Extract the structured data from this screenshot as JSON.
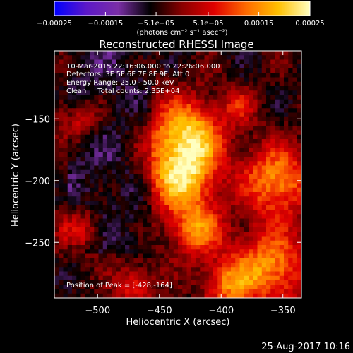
{
  "chart_data": {
    "type": "heatmap",
    "title": "Reconstructed RHESSI Image",
    "xlabel": "Heliocentric X (arcsec)",
    "ylabel": "Heliocentric Y (arcsec)",
    "xlim": [
      -535,
      -335
    ],
    "ylim": [
      -295,
      -95
    ],
    "x_ticks": [
      -500,
      -450,
      -400,
      -350
    ],
    "x_tick_labels": [
      "−500",
      "−450",
      "−400",
      "−350"
    ],
    "y_ticks": [
      -150,
      -200,
      -250
    ],
    "y_tick_labels": [
      "−150",
      "−200",
      "−250"
    ],
    "colorbar": {
      "range": [
        -0.00025,
        0.00025
      ],
      "ticks": [
        -0.00025,
        -0.00015,
        -5.1e-05,
        5.1e-05,
        0.00015,
        0.00025
      ],
      "tick_labels": [
        "−0.00025",
        "−0.00015",
        "−5.1e−05",
        "5.1e−05",
        "0.00015",
        "0.00025"
      ],
      "unit_label": "(photons cm⁻² s⁻¹ asec⁻²)",
      "colormap": [
        "#0000ff",
        "#5c18c8",
        "#7a2ea6",
        "#000000",
        "#8a0000",
        "#e00000",
        "#ff6a00",
        "#ffc000",
        "#ffffc0"
      ]
    },
    "annotations": {
      "time_range": "10-Mar-2015 22:16:06.000 to 22:26:06.000",
      "detectors": "Detectors: 3F 5F 6F 7F 8F 9F, Att 0",
      "energy_range": "Energy Range: 25.0 - 50.0 keV",
      "method_counts": "Clean     Total counts: 2.35E+04",
      "peak_position": "Position of Peak = [-428,-164]"
    },
    "peak": [
      -428,
      -164
    ],
    "grid": false
  },
  "footer": {
    "date": "25-Aug-2017 10:16"
  }
}
